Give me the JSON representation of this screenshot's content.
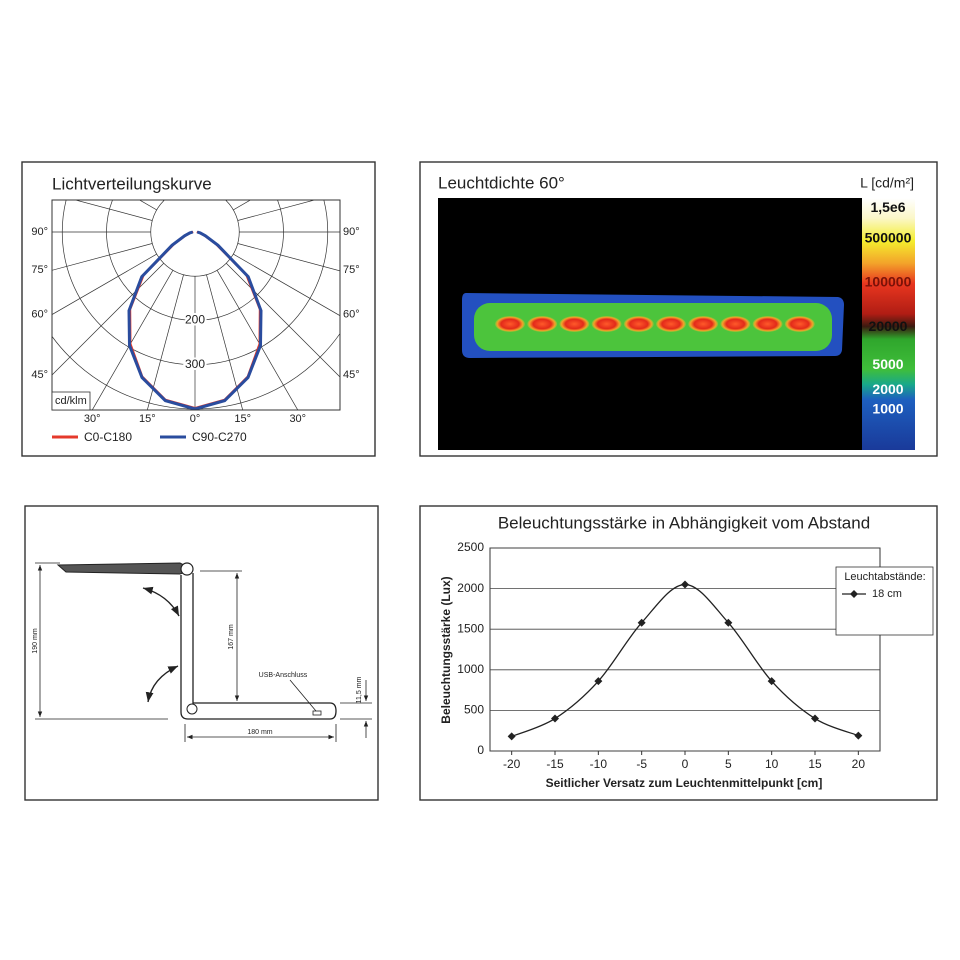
{
  "chart_data": [
    {
      "type": "polar",
      "title": "Lichtverteilungskurve",
      "unit": "cd/klm",
      "rlim": [
        0,
        400
      ],
      "rgrid": [
        100,
        200,
        300,
        400
      ],
      "rticks": [
        200,
        300
      ],
      "side_ticks": [
        {
          "value": 90,
          "label": "90°"
        },
        {
          "value": 75,
          "label": "75°"
        },
        {
          "value": 60,
          "label": "60°"
        },
        {
          "value": 45,
          "label": "45°"
        }
      ],
      "bottom_ticks": [
        {
          "value": -30,
          "label": "30°"
        },
        {
          "value": -15,
          "label": "15°"
        },
        {
          "value": 0,
          "label": "0°"
        },
        {
          "value": 15,
          "label": "15°"
        },
        {
          "value": 30,
          "label": "30°"
        }
      ],
      "x": [
        0,
        10,
        20,
        30,
        40,
        50,
        60,
        70,
        80,
        90
      ],
      "series": [
        {
          "name": "C0-C180",
          "color": "#e5392b",
          "values": [
            398,
            385,
            348,
            292,
            228,
            152,
            55,
            22,
            10,
            4
          ]
        },
        {
          "name": "C90-C270",
          "color": "#2a4c9e",
          "values": [
            400,
            387,
            350,
            296,
            232,
            157,
            60,
            25,
            12,
            5
          ]
        }
      ]
    },
    {
      "type": "heatmap",
      "title": "Leuchtdichte 60°",
      "colorbar_label": "L [cd/m²]",
      "log": true,
      "clim": [
        230,
        2200000
      ],
      "colorbar_ticks": [
        {
          "value": 1500000,
          "label": "1,5e6"
        },
        500000,
        100000,
        20000,
        5000,
        2000,
        1000
      ]
    },
    {
      "type": "line",
      "title": "Beleuchtungsstärke in Abhängigkeit vom Abstand",
      "x_label": "Seitlicher Versatz zum Leuchtenmittelpunkt [cm]",
      "y_label": "Beleuchtungsstärke (Lux)",
      "x": [
        -20,
        -15,
        -10,
        -5,
        0,
        5,
        10,
        15,
        20
      ],
      "xlim": [
        -22.5,
        22.5
      ],
      "xticks": [
        -20,
        -15,
        -10,
        -5,
        0,
        5,
        10,
        15,
        20
      ],
      "ylim": [
        0,
        2500
      ],
      "yticks": [
        0,
        500,
        1000,
        1500,
        2000,
        2500
      ],
      "grid": true,
      "legend_title": "Leuchtabstände:",
      "legend": "upper right",
      "series": [
        {
          "name": "18 cm",
          "color": "#222222",
          "values": [
            180,
            400,
            860,
            1580,
            2050,
            1580,
            860,
            400,
            190
          ]
        }
      ]
    }
  ],
  "drawing": {
    "labels": {
      "height_total": "190 mm",
      "arm_height": "167 mm",
      "base_height": "11,5 mm",
      "base_length": "180 mm",
      "usb": "USB-Anschluss"
    }
  }
}
